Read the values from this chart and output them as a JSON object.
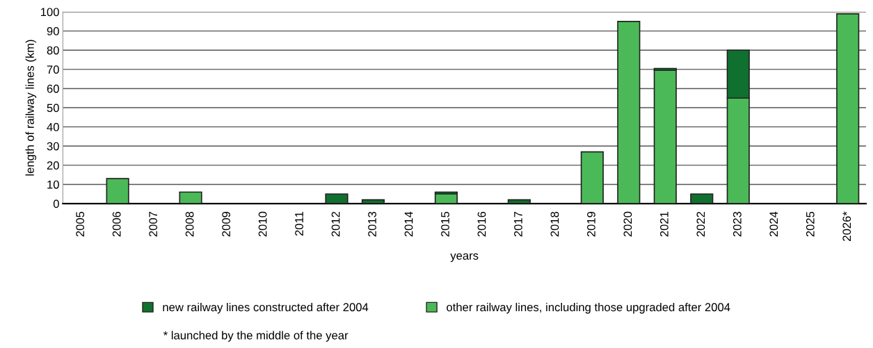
{
  "chart_data": {
    "type": "bar",
    "stacked": true,
    "xlabel": "years",
    "ylabel": "length of railway lines (km)",
    "categories": [
      "2005",
      "2006",
      "2007",
      "2008",
      "2009",
      "2010",
      "2011",
      "2012",
      "2013",
      "2014",
      "2015",
      "2016",
      "2017",
      "2018",
      "2019",
      "2020",
      "2021",
      "2022",
      "2023",
      "2024",
      "2025",
      "2026*"
    ],
    "series": [
      {
        "name": "other railway lines, including those upgraded after 2004",
        "color": "#4bb957",
        "values": [
          null,
          13,
          null,
          6,
          null,
          null,
          null,
          null,
          null,
          null,
          5,
          null,
          null,
          null,
          27,
          95,
          69.5,
          null,
          55,
          null,
          null,
          99
        ]
      },
      {
        "name": "new railway lines constructed after 2004",
        "color": "#10702f",
        "values": [
          null,
          null,
          null,
          null,
          null,
          null,
          null,
          5,
          2,
          null,
          1,
          null,
          2,
          null,
          null,
          null,
          1,
          5,
          25,
          null,
          null,
          null
        ]
      }
    ],
    "ylim": [
      0,
      100
    ],
    "yticks": [
      0,
      10,
      20,
      30,
      40,
      50,
      60,
      70,
      80,
      90,
      100
    ],
    "grid": "y",
    "legend": "bottom",
    "annotations": [
      "* launched by the middle of the year"
    ]
  }
}
